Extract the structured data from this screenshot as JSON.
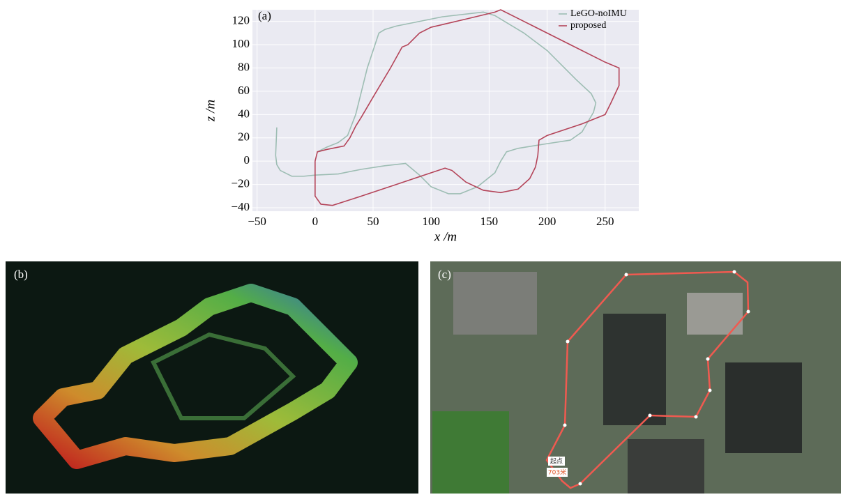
{
  "chart_data": {
    "type": "line",
    "annotation": "(a)",
    "x_label": "x /m",
    "y_label": "z /m",
    "xlim": [
      -54,
      279
    ],
    "ylim": [
      -43,
      130
    ],
    "xticks": [
      {
        "value": -50,
        "label": "−50"
      },
      0,
      50,
      100,
      150,
      200,
      250
    ],
    "yticks": [
      {
        "value": -40,
        "label": "−40"
      },
      {
        "value": -20,
        "label": "−20"
      },
      0,
      20,
      40,
      60,
      80,
      100,
      120
    ],
    "grid": true,
    "legend": "upper right",
    "series": [
      {
        "name": "LeGO-noIMU",
        "color": "#9dbdb3",
        "x": [
          -33,
          -34,
          -33,
          -30,
          -20,
          -10,
          0,
          20,
          40,
          60,
          78,
          90,
          100,
          115,
          125,
          140,
          155,
          160,
          165,
          175,
          200,
          220,
          230,
          240,
          242,
          238,
          225,
          200,
          180,
          155,
          145,
          110,
          70,
          60,
          55,
          45,
          35,
          28,
          20,
          10,
          2
        ],
        "values": [
          29,
          5,
          -3,
          -8,
          -13,
          -13,
          -12,
          -11,
          -7,
          -4,
          -2,
          -12,
          -22,
          -28,
          -28,
          -22,
          -10,
          0,
          8,
          11,
          15,
          18,
          25,
          42,
          50,
          58,
          70,
          95,
          110,
          125,
          128,
          124,
          116,
          113,
          110,
          80,
          40,
          22,
          16,
          12,
          8
        ]
      },
      {
        "name": "proposed",
        "color": "#b44459",
        "x": [
          0,
          0,
          5,
          15,
          40,
          70,
          100,
          112,
          118,
          130,
          145,
          160,
          175,
          185,
          190,
          192,
          193,
          200,
          230,
          250,
          255,
          262,
          262,
          250,
          220,
          180,
          160,
          155,
          130,
          100,
          90,
          80,
          75,
          65,
          50,
          40,
          35,
          30,
          25,
          10,
          2,
          0
        ],
        "values": [
          0,
          -30,
          -37,
          -38,
          -30,
          -20,
          -10,
          -6,
          -8,
          -18,
          -25,
          -27,
          -24,
          -15,
          -5,
          5,
          18,
          22,
          32,
          40,
          50,
          65,
          80,
          85,
          100,
          120,
          130,
          128,
          122,
          115,
          110,
          100,
          98,
          80,
          55,
          38,
          30,
          20,
          13,
          10,
          8,
          0
        ]
      }
    ]
  },
  "panels": [
    {
      "label": "(b)"
    },
    {
      "label": "(c)",
      "start_label": "起点",
      "distance_label": "703米"
    }
  ]
}
